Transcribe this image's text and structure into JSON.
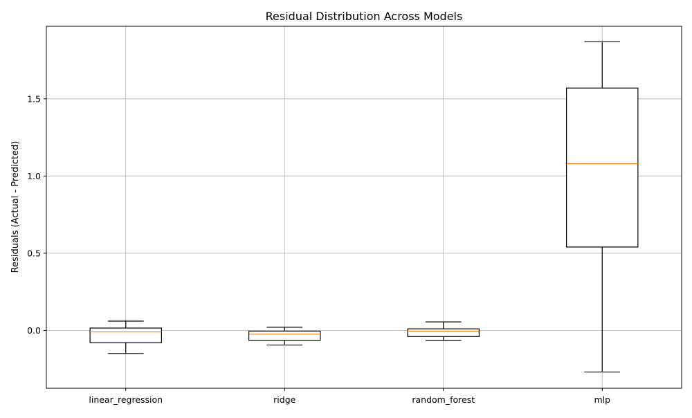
{
  "chart_data": {
    "type": "box",
    "title": "Residual Distribution Across Models",
    "xlabel": "",
    "ylabel": "Residuals (Actual - Predicted)",
    "ylim": [
      -0.375,
      1.97
    ],
    "yticks": [
      0.0,
      0.5,
      1.0,
      1.5
    ],
    "ytick_labels": [
      "0.0",
      "0.5",
      "1.0",
      "1.5"
    ],
    "grid": true,
    "categories": [
      "linear_regression",
      "ridge",
      "random_forest",
      "mlp"
    ],
    "boxes": [
      {
        "name": "linear_regression",
        "whisker_low": -0.15,
        "q1": -0.08,
        "median": -0.01,
        "q3": 0.015,
        "whisker_high": 0.06
      },
      {
        "name": "ridge",
        "whisker_low": -0.095,
        "q1": -0.065,
        "median": -0.025,
        "q3": -0.005,
        "whisker_high": 0.02
      },
      {
        "name": "random_forest",
        "whisker_low": -0.065,
        "q1": -0.04,
        "median": -0.005,
        "q3": 0.01,
        "whisker_high": 0.055
      },
      {
        "name": "mlp",
        "whisker_low": -0.27,
        "q1": 0.54,
        "median": 1.08,
        "q3": 1.57,
        "whisker_high": 1.87
      }
    ],
    "colors": {
      "box": "#000000",
      "median": "#ff7f0e",
      "grid": "#b0b0b0",
      "axes": "#000000"
    }
  }
}
